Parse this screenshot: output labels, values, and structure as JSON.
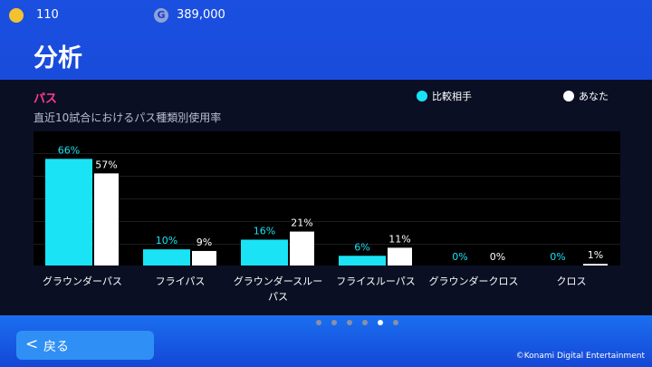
{
  "header": {
    "coins": "110",
    "points": "389,000",
    "title": "分析"
  },
  "chart_data": {
    "type": "bar",
    "title": "パス",
    "subtitle": "直近10試合におけるパス種類別使用率",
    "categories": [
      "グラウンダーパス",
      "フライパス",
      "グラウンダースルーパス",
      "フライスルーパス",
      "グラウンダークロス",
      "クロス"
    ],
    "series": [
      {
        "name": "比較相手",
        "color": "#19e3f5",
        "values": [
          66,
          10,
          16,
          6,
          0,
          0
        ],
        "value_labels": [
          "66%",
          "10%",
          "16%",
          "6%",
          "0%",
          "0%"
        ]
      },
      {
        "name": "あなた",
        "color": "#ffffff",
        "values": [
          57,
          9,
          21,
          11,
          0,
          1
        ],
        "value_labels": [
          "57%",
          "9%",
          "21%",
          "11%",
          "0%",
          "1%"
        ]
      }
    ],
    "ylim": [
      0,
      83
    ]
  },
  "footer": {
    "back": "戻る",
    "copyright": "©Konami Digital Entertainment"
  }
}
